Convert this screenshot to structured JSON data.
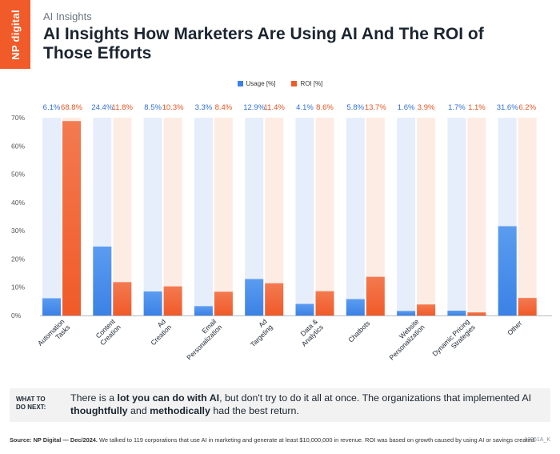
{
  "brand": {
    "logo_text": "NP digital"
  },
  "header": {
    "eyebrow": "AI Insights",
    "title": "AI Insights How Marketers Are Using AI And The ROI of Those Efforts"
  },
  "colors": {
    "usage": "#3b82e6",
    "usage_light": "#e6eefb",
    "roi": "#f15a29",
    "roi_light": "#fdece4",
    "accent": "#f15a29"
  },
  "chart_data": {
    "type": "bar",
    "categories": [
      "Automation Tasks",
      "Content Creation",
      "Ad Creation",
      "Email Personalization",
      "Ad Targeting",
      "Data & Analytics",
      "Chatbots",
      "Website Personalization",
      "Dynamic Pricing Strategies",
      "Other"
    ],
    "series": [
      {
        "name": "Usage [%]",
        "values": [
          6.1,
          24.4,
          8.5,
          3.3,
          12.9,
          4.1,
          5.8,
          1.6,
          1.7,
          31.6
        ]
      },
      {
        "name": "ROI [%]",
        "values": [
          68.8,
          11.8,
          10.3,
          8.4,
          11.4,
          8.6,
          13.7,
          3.9,
          1.1,
          6.2
        ]
      }
    ],
    "data_labels": {
      "usage": [
        "6.1%",
        "24.4%",
        "8.5%",
        "3.3%",
        "12.9%",
        "4.1%",
        "5.8%",
        "1.6%",
        "1.7%",
        "31.6%"
      ],
      "roi": [
        "68.8%",
        "11.8%",
        "10.3%",
        "8.4%",
        "11.4%",
        "8.6%",
        "13.7%",
        "3.9%",
        "1.1%",
        "6.2%"
      ]
    },
    "ylim": [
      0,
      70
    ],
    "yticks": [
      0,
      10,
      20,
      30,
      40,
      50,
      60,
      70
    ],
    "ytick_labels": [
      "0%",
      "10%",
      "20%",
      "30%",
      "40%",
      "50%",
      "60%",
      "70%"
    ],
    "legend": "top-center",
    "grid": false
  },
  "tip": {
    "label": "WHAT TO DO NEXT:",
    "text_parts": [
      {
        "text": "There is a ",
        "bold": false
      },
      {
        "text": "lot you can do with AI",
        "bold": true
      },
      {
        "text": ", but don't try to do it all at once. The organizations that implemented AI ",
        "bold": false
      },
      {
        "text": "thoughtfully",
        "bold": true
      },
      {
        "text": " and ",
        "bold": false
      },
      {
        "text": "methodically",
        "bold": true
      },
      {
        "text": " had the best return.",
        "bold": false
      }
    ]
  },
  "footer": {
    "source_label": "Source:",
    "source_org": "NP Digital — Dec/2024.",
    "source_text": "We talked to 119 corporations that use AI in marketing and generate at least $10,000,000 in revenue. ROI was based on growth caused by using AI or savings created.",
    "code": "12061A_K"
  }
}
